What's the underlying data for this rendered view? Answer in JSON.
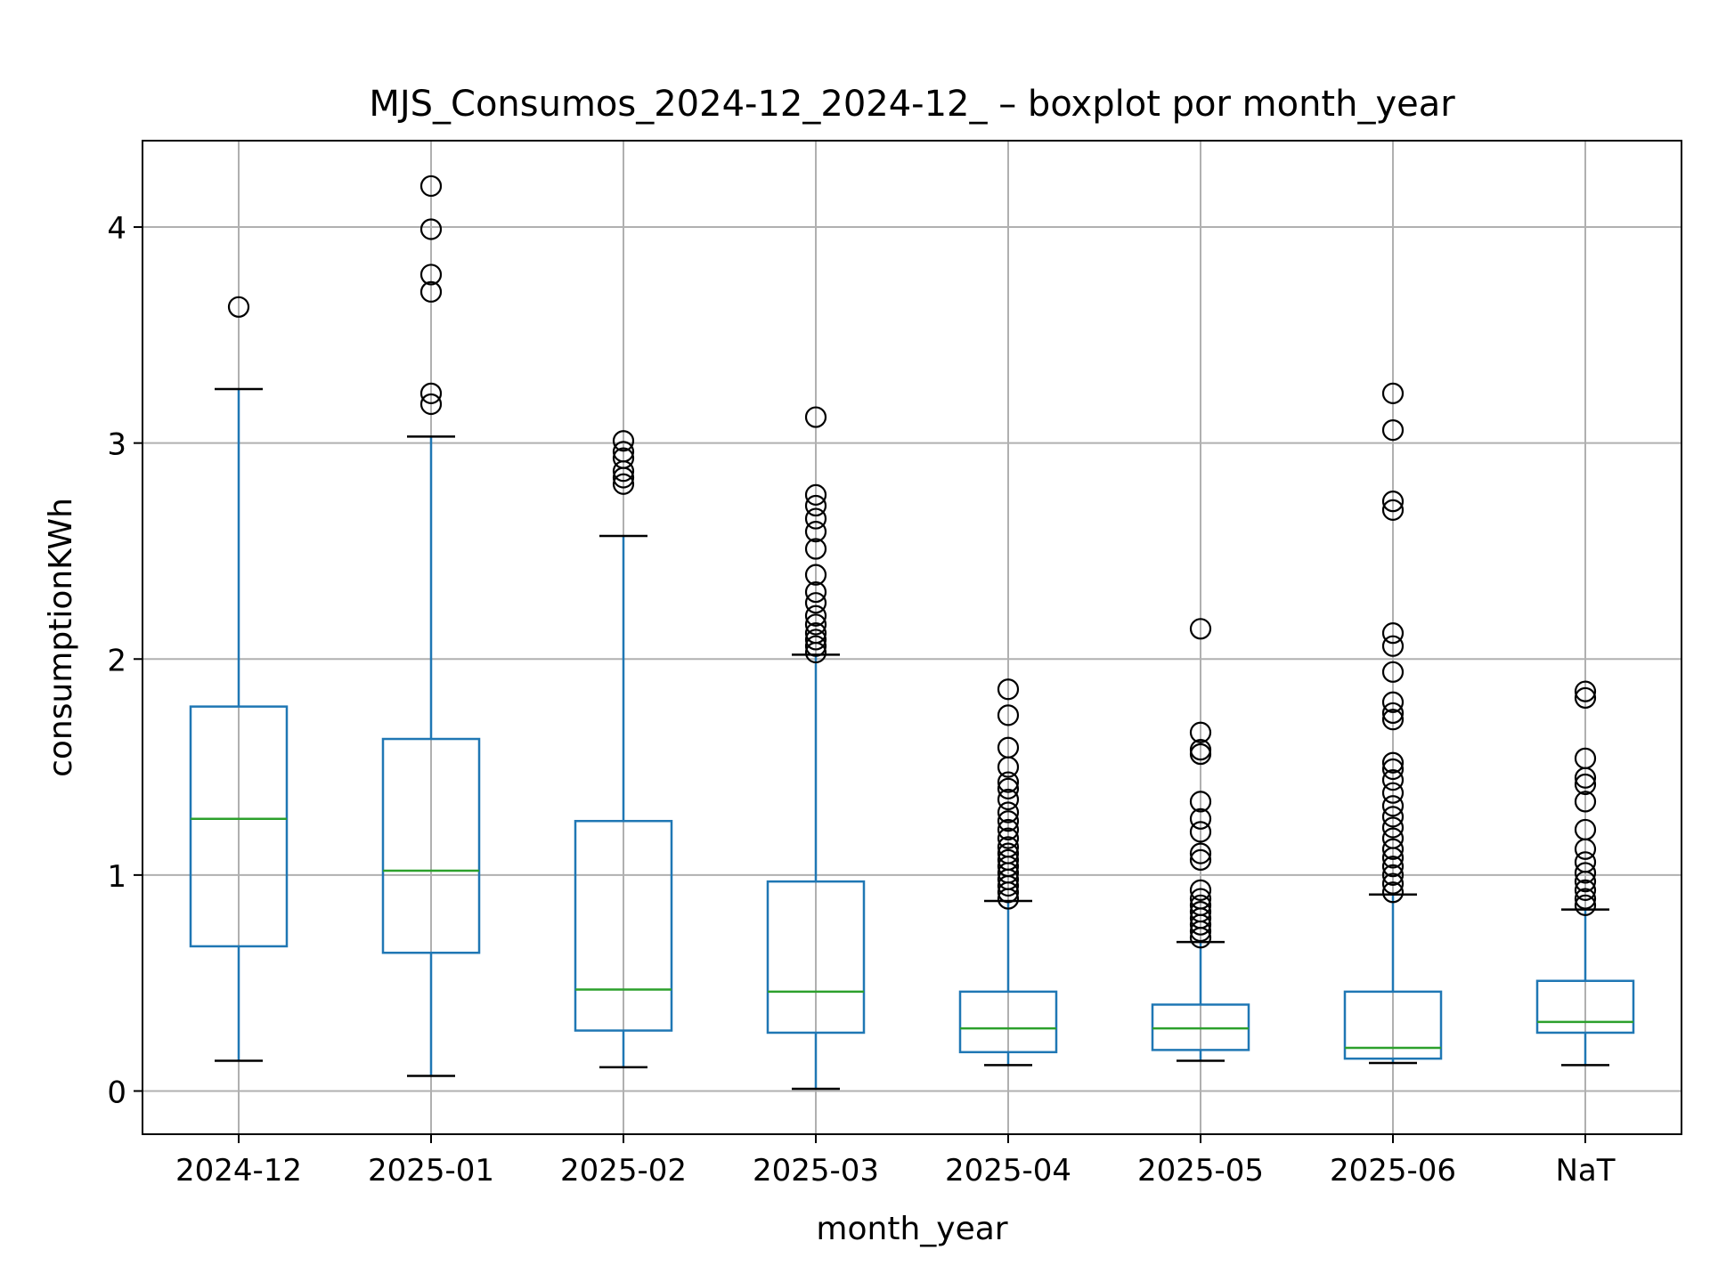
{
  "chart_data": {
    "type": "boxplot",
    "title": "MJS_Consumos_2024-12_2024-12_ – boxplot por month_year",
    "xlabel": "month_year",
    "ylabel": "consumptionKWh",
    "ylim": [
      -0.2,
      4.4
    ],
    "yticks": [
      0,
      1,
      2,
      3,
      4
    ],
    "grid": true,
    "colors": {
      "box": "#1f77b4",
      "median": "#2ca02c",
      "flier": "#000000",
      "grid": "#b0b0b0"
    },
    "categories": [
      "2024-12",
      "2025-01",
      "2025-02",
      "2025-03",
      "2025-04",
      "2025-05",
      "2025-06",
      "NaT"
    ],
    "boxes": [
      {
        "whislo": 0.14,
        "q1": 0.67,
        "med": 1.26,
        "q3": 1.78,
        "whishi": 3.25,
        "fliers": [
          3.63
        ]
      },
      {
        "whislo": 0.07,
        "q1": 0.64,
        "med": 1.02,
        "q3": 1.63,
        "whishi": 3.03,
        "fliers": [
          3.18,
          3.23,
          3.7,
          3.78,
          3.99,
          4.19
        ]
      },
      {
        "whislo": 0.11,
        "q1": 0.28,
        "med": 0.47,
        "q3": 1.25,
        "whishi": 2.57,
        "fliers": [
          2.81,
          2.84,
          2.87,
          2.93,
          2.96,
          3.01
        ]
      },
      {
        "whislo": 0.01,
        "q1": 0.27,
        "med": 0.46,
        "q3": 0.97,
        "whishi": 2.02,
        "fliers": [
          2.03,
          2.06,
          2.09,
          2.12,
          2.16,
          2.2,
          2.26,
          2.31,
          2.39,
          2.51,
          2.59,
          2.65,
          2.71,
          2.76,
          3.12
        ]
      },
      {
        "whislo": 0.12,
        "q1": 0.18,
        "med": 0.29,
        "q3": 0.46,
        "whishi": 0.88,
        "fliers": [
          0.89,
          0.92,
          0.95,
          0.98,
          1.01,
          1.04,
          1.07,
          1.1,
          1.13,
          1.17,
          1.21,
          1.25,
          1.29,
          1.35,
          1.4,
          1.43,
          1.5,
          1.59,
          1.74,
          1.86
        ]
      },
      {
        "whislo": 0.14,
        "q1": 0.19,
        "med": 0.29,
        "q3": 0.4,
        "whishi": 0.69,
        "fliers": [
          0.71,
          0.74,
          0.77,
          0.8,
          0.83,
          0.86,
          0.89,
          0.93,
          1.07,
          1.1,
          1.2,
          1.26,
          1.34,
          1.56,
          1.58,
          1.66,
          2.14
        ]
      },
      {
        "whislo": 0.13,
        "q1": 0.15,
        "med": 0.2,
        "q3": 0.46,
        "whishi": 0.91,
        "fliers": [
          0.92,
          0.96,
          1.0,
          1.04,
          1.08,
          1.12,
          1.17,
          1.22,
          1.27,
          1.32,
          1.38,
          1.44,
          1.49,
          1.52,
          1.72,
          1.75,
          1.8,
          1.94,
          2.06,
          2.12,
          2.69,
          2.73,
          3.06,
          3.23
        ]
      },
      {
        "whislo": 0.12,
        "q1": 0.27,
        "med": 0.32,
        "q3": 0.51,
        "whishi": 0.84,
        "fliers": [
          0.86,
          0.89,
          0.93,
          0.97,
          1.01,
          1.06,
          1.12,
          1.21,
          1.34,
          1.42,
          1.45,
          1.54,
          1.82,
          1.85
        ]
      }
    ]
  }
}
